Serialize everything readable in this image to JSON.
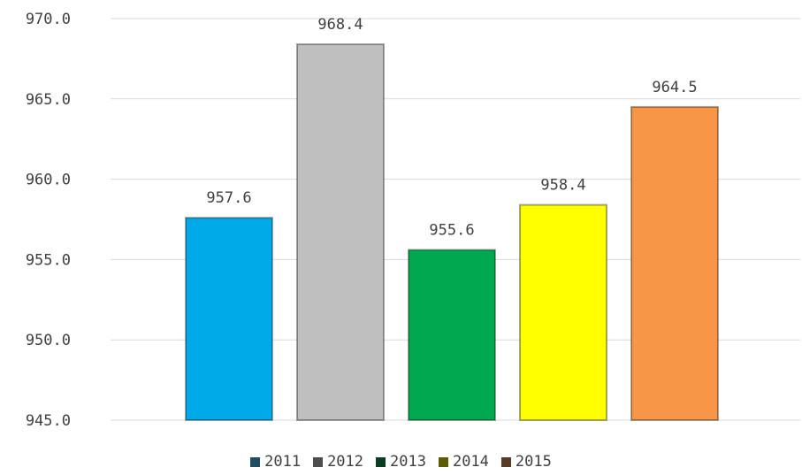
{
  "chart_data": {
    "type": "bar",
    "categories": [
      "2011",
      "2012",
      "2013",
      "2014",
      "2015"
    ],
    "values": [
      957.6,
      968.4,
      955.6,
      958.4,
      964.5
    ],
    "value_labels": [
      "957.6",
      "968.4",
      "955.6",
      "958.4",
      "964.5"
    ],
    "ylim": [
      945.0,
      970.0
    ],
    "y_ticks": [
      {
        "value": 945.0,
        "label": "945.0"
      },
      {
        "value": 950.0,
        "label": "950.0"
      },
      {
        "value": 955.0,
        "label": "955.0"
      },
      {
        "value": 960.0,
        "label": "960.0"
      },
      {
        "value": 965.0,
        "label": "965.0"
      },
      {
        "value": 970.0,
        "label": "970.0"
      }
    ],
    "bar_colors": [
      "#00a9e8",
      "#bfbfbf",
      "#00a84f",
      "#ffff00",
      "#f79646"
    ],
    "legend_colors": [
      "#1f4e63",
      "#4d4d4d",
      "#0b3d23",
      "#5c5c00",
      "#5a3a28"
    ],
    "legend_position": "bottom",
    "grid": true,
    "title": "",
    "xlabel": "",
    "ylabel": ""
  }
}
